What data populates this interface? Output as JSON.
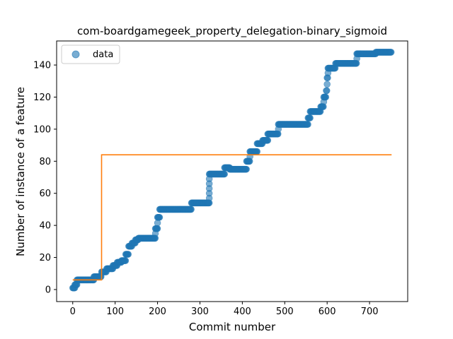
{
  "chart_data": {
    "type": "scatter",
    "title": "com-boardgamegeek_property_delegation-binary_sigmoid",
    "xlabel": "Commit number",
    "ylabel": "Number of instance of a feature",
    "xlim": [
      -38,
      790
    ],
    "ylim": [
      -7.5,
      155
    ],
    "xticks": [
      0,
      100,
      200,
      300,
      400,
      500,
      600,
      700
    ],
    "yticks": [
      0,
      20,
      40,
      60,
      80,
      100,
      120,
      140
    ],
    "grid": false,
    "legend": {
      "position": "top-left",
      "entries": [
        "data"
      ]
    },
    "colors": {
      "data": "#1f77b4",
      "fit": "#ff7f0e"
    },
    "series": [
      {
        "name": "data",
        "kind": "scatter",
        "segments": [
          {
            "x": [
              0,
              5
            ],
            "y": 1
          },
          {
            "x": [
              5,
              10
            ],
            "y": 3
          },
          {
            "x": [
              10,
              50
            ],
            "y": 6
          },
          {
            "x": [
              50,
              68
            ],
            "y": 8
          },
          {
            "x": [
              68,
              80
            ],
            "y": 11
          },
          {
            "x": [
              80,
              95
            ],
            "y": 13
          },
          {
            "x": [
              95,
              105
            ],
            "y": 15
          },
          {
            "x": [
              105,
              115
            ],
            "y": 17
          },
          {
            "x": [
              115,
              125
            ],
            "y": 18
          },
          {
            "x": [
              125,
              132
            ],
            "y": 22
          },
          {
            "x": [
              132,
              140
            ],
            "y": 27
          },
          {
            "x": [
              140,
              148
            ],
            "y": 29
          },
          {
            "x": [
              148,
              155
            ],
            "y": 31
          },
          {
            "x": [
              155,
              195
            ],
            "y": 32
          },
          {
            "x": [
              195,
              200
            ],
            "y": 38
          },
          {
            "x": [
              200,
              205
            ],
            "y": 45
          },
          {
            "x": [
              205,
              280
            ],
            "y": 50
          },
          {
            "x": [
              280,
              322
            ],
            "y": 54
          },
          {
            "x": [
              322,
              358
            ],
            "y": 72
          },
          {
            "x": [
              358,
              370
            ],
            "y": 76
          },
          {
            "x": [
              370,
              410
            ],
            "y": 75
          },
          {
            "x": [
              410,
              418
            ],
            "y": 80
          },
          {
            "x": [
              418,
              435
            ],
            "y": 86
          },
          {
            "x": [
              435,
              448
            ],
            "y": 91
          },
          {
            "x": [
              448,
              460
            ],
            "y": 93
          },
          {
            "x": [
              460,
              485
            ],
            "y": 97
          },
          {
            "x": [
              485,
              555
            ],
            "y": 103
          },
          {
            "x": [
              555,
              560
            ],
            "y": 107
          },
          {
            "x": [
              560,
              585
            ],
            "y": 111
          },
          {
            "x": [
              585,
              592
            ],
            "y": 114
          },
          {
            "x": [
              592,
              598
            ],
            "y": 120
          },
          {
            "x": [
              598,
              600
            ],
            "y": 124
          },
          {
            "x": [
              600,
              602
            ],
            "y": 132
          },
          {
            "x": [
              602,
              620
            ],
            "y": 138
          },
          {
            "x": [
              620,
              670
            ],
            "y": 141
          },
          {
            "x": [
              670,
              715
            ],
            "y": 147
          },
          {
            "x": [
              715,
              752
            ],
            "y": 148
          }
        ]
      },
      {
        "name": "",
        "kind": "line",
        "points": [
          [
            0,
            6
          ],
          [
            68,
            6
          ],
          [
            68,
            84
          ],
          [
            752,
            84
          ]
        ]
      }
    ]
  }
}
